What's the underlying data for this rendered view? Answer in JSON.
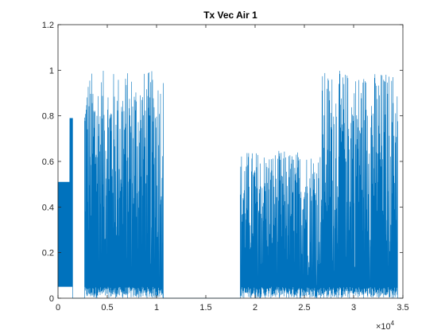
{
  "chart_data": {
    "type": "line",
    "title": "Tx Vec Air 1",
    "xlabel": "",
    "ylabel": "",
    "xlim": [
      0,
      35000
    ],
    "ylim": [
      0,
      1.2
    ],
    "x_tick_values": [
      0,
      5000,
      10000,
      15000,
      20000,
      25000,
      30000,
      35000
    ],
    "x_tick_labels": [
      "0",
      "0.5",
      "1",
      "1.5",
      "2",
      "2.5",
      "3",
      "3.5"
    ],
    "x_scale_base": "×10",
    "x_scale_exponent": "4",
    "y_ticks": [
      0,
      0.2,
      0.4,
      0.6,
      0.8,
      1,
      1.2
    ],
    "y_tick_labels": [
      "0",
      "0.2",
      "0.4",
      "0.6",
      "0.8",
      "1",
      "1.2"
    ],
    "grid": false,
    "series": [
      {
        "color": "#0072BD",
        "segments": [
          {
            "x_start": 0,
            "x_end": 1200,
            "envelope_min": 0.05,
            "envelope_max": 0.51,
            "pattern": "square"
          },
          {
            "x_start": 1200,
            "x_end": 1500,
            "envelope_min": 0.05,
            "envelope_max": 0.79,
            "pattern": "square"
          },
          {
            "x_start": 2700,
            "x_end": 10700,
            "envelope_min": 0.0,
            "envelope_max": 1.0,
            "pattern": "noise"
          },
          {
            "x_start": 18500,
            "x_end": 26800,
            "envelope_min": 0.0,
            "envelope_max": 0.65,
            "pattern": "noise"
          },
          {
            "x_start": 26800,
            "x_end": 34500,
            "envelope_min": 0.0,
            "envelope_max": 1.0,
            "pattern": "noise"
          }
        ]
      }
    ]
  }
}
